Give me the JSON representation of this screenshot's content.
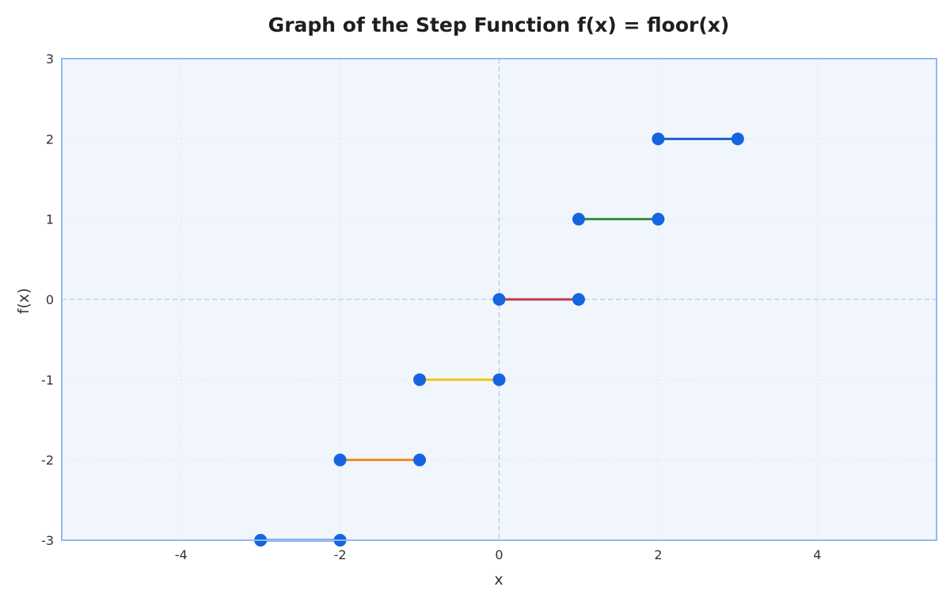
{
  "chart_data": {
    "type": "line",
    "title": "Graph of the Step Function f(x) = floor(x)",
    "xlabel": "x",
    "ylabel": "f(x)",
    "xlim": [
      -5.5,
      5.5
    ],
    "ylim": [
      -3,
      3
    ],
    "x_ticks": [
      -4,
      -2,
      0,
      2,
      4
    ],
    "y_ticks": [
      -3,
      -2,
      -1,
      0,
      1,
      2,
      3
    ],
    "x_tick_labels": [
      "-4",
      "-2",
      "0",
      "2",
      "4"
    ],
    "y_tick_labels": [
      "-3",
      "-2",
      "-1",
      "0",
      "1",
      "2",
      "3"
    ],
    "grid": true,
    "reference_lines": {
      "x": 0,
      "y": 0
    },
    "series": [
      {
        "x": [
          -3,
          -2
        ],
        "y": [
          -3,
          -3
        ],
        "color": "#1a5fd6"
      },
      {
        "x": [
          -2,
          -1
        ],
        "y": [
          -2,
          -2
        ],
        "color": "#f08a24"
      },
      {
        "x": [
          -1,
          0
        ],
        "y": [
          -1,
          -1
        ],
        "color": "#f5c518"
      },
      {
        "x": [
          0,
          1
        ],
        "y": [
          0,
          0
        ],
        "color": "#c0394b"
      },
      {
        "x": [
          1,
          2
        ],
        "y": [
          1,
          1
        ],
        "color": "#3a8a3a"
      },
      {
        "x": [
          2,
          3
        ],
        "y": [
          2,
          2
        ],
        "color": "#1a5fd6"
      }
    ],
    "marker_color": "#1565e0"
  },
  "colors": {
    "plot_background": "#f1f6fc",
    "plot_border": "#90baf0",
    "grid": "#dde6f2",
    "reference_line": "#b9d3f3"
  }
}
